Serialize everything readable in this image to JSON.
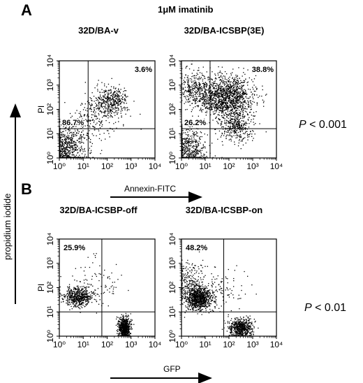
{
  "figure": {
    "treatment_label": "1μM imatinib",
    "yaxis_arrow_label": "propidium iodide",
    "colors": {
      "ink": "#000000",
      "background": "#ffffff"
    }
  },
  "panels": [
    {
      "letter": "A",
      "x_arrow_label": "Annexin-FITC",
      "pvalue_prefix": "P",
      "pvalue_text": " < 0.001"
    },
    {
      "letter": "B",
      "x_arrow_label": "GFP",
      "pvalue_prefix": "P",
      "pvalue_text": " < 0.01"
    }
  ],
  "chart_data": [
    {
      "type": "scatter",
      "title": "32D/BA-v",
      "ylabel": "PI",
      "xscale": "log",
      "yscale": "log",
      "xlim": [
        1,
        10000
      ],
      "ylim": [
        1,
        10000
      ],
      "xticks": [
        "10⁰",
        "10¹",
        "10²",
        "10³",
        "10⁴"
      ],
      "yticks": [
        "10⁰",
        "10¹",
        "10²",
        "10³",
        "10⁴"
      ],
      "gate": [
        16,
        16
      ],
      "annotations": [
        {
          "text": "3.6%",
          "quadrant": "upper-right"
        },
        {
          "text": "86.7%",
          "quadrant": "lower-left"
        }
      ],
      "clusters": [
        {
          "cx": 1.6,
          "cy": 1.7,
          "n": 700,
          "spread": [
            0.4,
            0.45
          ]
        },
        {
          "cx": 150,
          "cy": 200,
          "n": 380,
          "spread": [
            0.35,
            0.3
          ]
        },
        {
          "cx": 40,
          "cy": 60,
          "n": 180,
          "spread": [
            0.5,
            0.45
          ]
        },
        {
          "cx": 5,
          "cy": 9,
          "n": 160,
          "spread": [
            0.45,
            0.4
          ]
        }
      ]
    },
    {
      "type": "scatter",
      "title": "32D/BA-ICSBP(3E)",
      "ylabel": "",
      "xscale": "log",
      "yscale": "log",
      "xlim": [
        1,
        10000
      ],
      "ylim": [
        1,
        10000
      ],
      "xticks": [
        "10⁰",
        "10¹",
        "10²",
        "10³",
        "10⁴"
      ],
      "yticks": [
        "10⁰",
        "10¹",
        "10²",
        "10³",
        "10⁴"
      ],
      "gate": [
        16,
        16
      ],
      "annotations": [
        {
          "text": "38.8%",
          "quadrant": "upper-right"
        },
        {
          "text": "26.2%",
          "quadrant": "lower-left"
        }
      ],
      "clusters": [
        {
          "cx": 1.6,
          "cy": 1.7,
          "n": 650,
          "spread": [
            0.4,
            0.45
          ]
        },
        {
          "cx": 80,
          "cy": 300,
          "n": 1300,
          "spread": [
            0.55,
            0.45
          ]
        },
        {
          "cx": 200,
          "cy": 20,
          "n": 350,
          "spread": [
            0.35,
            0.35
          ]
        },
        {
          "cx": 4,
          "cy": 600,
          "n": 350,
          "spread": [
            0.35,
            0.4
          ]
        }
      ]
    },
    {
      "type": "scatter",
      "title": "32D/BA-ICSBP-off",
      "ylabel": "PI",
      "xscale": "log",
      "yscale": "log",
      "xlim": [
        1,
        10000
      ],
      "ylim": [
        1,
        10000
      ],
      "xticks": [
        "10⁰",
        "10¹",
        "10²",
        "10³",
        "10⁴"
      ],
      "yticks": [
        "10⁰",
        "10¹",
        "10²",
        "10³",
        "10⁴"
      ],
      "gate": [
        60,
        10
      ],
      "annotations": [
        {
          "text": "25.9%",
          "quadrant": "upper-left"
        }
      ],
      "clusters": [
        {
          "cx": 6,
          "cy": 40,
          "n": 520,
          "spread": [
            0.3,
            0.2
          ]
        },
        {
          "cx": 500,
          "cy": 2,
          "n": 750,
          "spread": [
            0.12,
            0.22
          ]
        },
        {
          "cx": 40,
          "cy": 150,
          "n": 90,
          "spread": [
            0.5,
            0.5
          ]
        }
      ]
    },
    {
      "type": "scatter",
      "title": "32D/BA-ICSBP-on",
      "ylabel": "",
      "xscale": "log",
      "yscale": "log",
      "xlim": [
        1,
        10000
      ],
      "ylim": [
        1,
        10000
      ],
      "xticks": [
        "10⁰",
        "10¹",
        "10²",
        "10³",
        "10⁴"
      ],
      "yticks": [
        "10⁰",
        "10¹",
        "10²",
        "10³",
        "10⁴"
      ],
      "gate": [
        60,
        10
      ],
      "annotations": [
        {
          "text": "48.2%",
          "quadrant": "upper-left"
        }
      ],
      "clusters": [
        {
          "cx": 5,
          "cy": 35,
          "n": 900,
          "spread": [
            0.3,
            0.25
          ]
        },
        {
          "cx": 300,
          "cy": 2,
          "n": 600,
          "spread": [
            0.25,
            0.22
          ]
        },
        {
          "cx": 2,
          "cy": 150,
          "n": 250,
          "spread": [
            0.35,
            0.45
          ]
        },
        {
          "cx": 60,
          "cy": 90,
          "n": 90,
          "spread": [
            0.5,
            0.5
          ]
        }
      ]
    }
  ]
}
